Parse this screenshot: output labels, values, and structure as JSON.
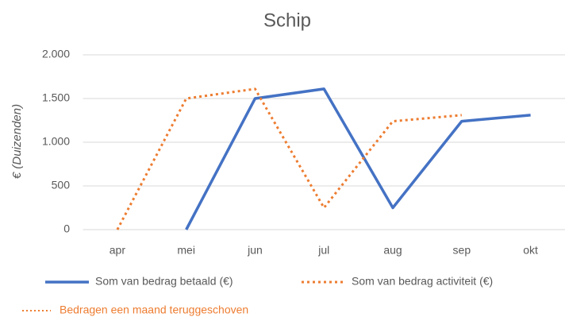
{
  "chart_data": {
    "type": "line",
    "title": "Schip",
    "y_label": "€ (Duizenden)",
    "categories": [
      "apr",
      "mei",
      "jun",
      "jul",
      "aug",
      "sep",
      "okt"
    ],
    "series": [
      {
        "name": "Som van bedrag betaald (€)",
        "color": "#4472c4",
        "values": [
          null,
          0,
          1500,
          1610,
          250,
          1240,
          1310
        ]
      },
      {
        "name": "Som van bedrag activiteit (€)",
        "color": "#ed7d31",
        "values": [
          0,
          1500,
          1610,
          250,
          1240,
          1310,
          null
        ]
      }
    ],
    "ylim": [
      0,
      2000
    ],
    "yticks": [
      0,
      500,
      {
        "value": 1000,
        "label": "1.000"
      },
      {
        "value": 1500,
        "label": "1.500"
      },
      {
        "value": 2000,
        "label": "2.000"
      }
    ],
    "grid": true,
    "annotation": "Bedragen een maand teruggeschoven"
  }
}
